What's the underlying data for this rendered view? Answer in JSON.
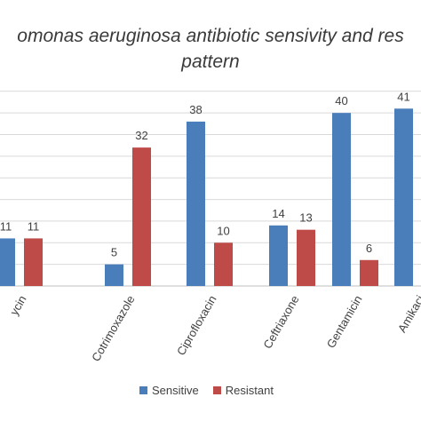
{
  "title_lines": [
    "omonas aeruginosa antibiotic sensivity and res",
    "pattern"
  ],
  "chart_data": {
    "type": "bar",
    "title": "omonas aeruginosa antibiotic sensivity and res pattern",
    "categories": [
      "ycin",
      "Cotrimoxazole",
      "Ciprofloxacin",
      "Ceftriaxone",
      "Gentamicin",
      "Amikaci"
    ],
    "series": [
      {
        "name": "Sensitive",
        "color": "#4a7ebb",
        "values": [
          11,
          5,
          38,
          14,
          40,
          41
        ]
      },
      {
        "name": "Resistant",
        "color": "#be4b48",
        "values": [
          11,
          32,
          10,
          13,
          6,
          0
        ]
      }
    ],
    "data_labels": [
      [
        "11",
        "5",
        "38",
        "14",
        "40",
        "41"
      ],
      [
        "11",
        "32",
        "10",
        "13",
        "6",
        ""
      ]
    ],
    "ylim": [
      0,
      45
    ],
    "grid": true,
    "legend": "bottom",
    "xlabel": "",
    "ylabel": ""
  }
}
